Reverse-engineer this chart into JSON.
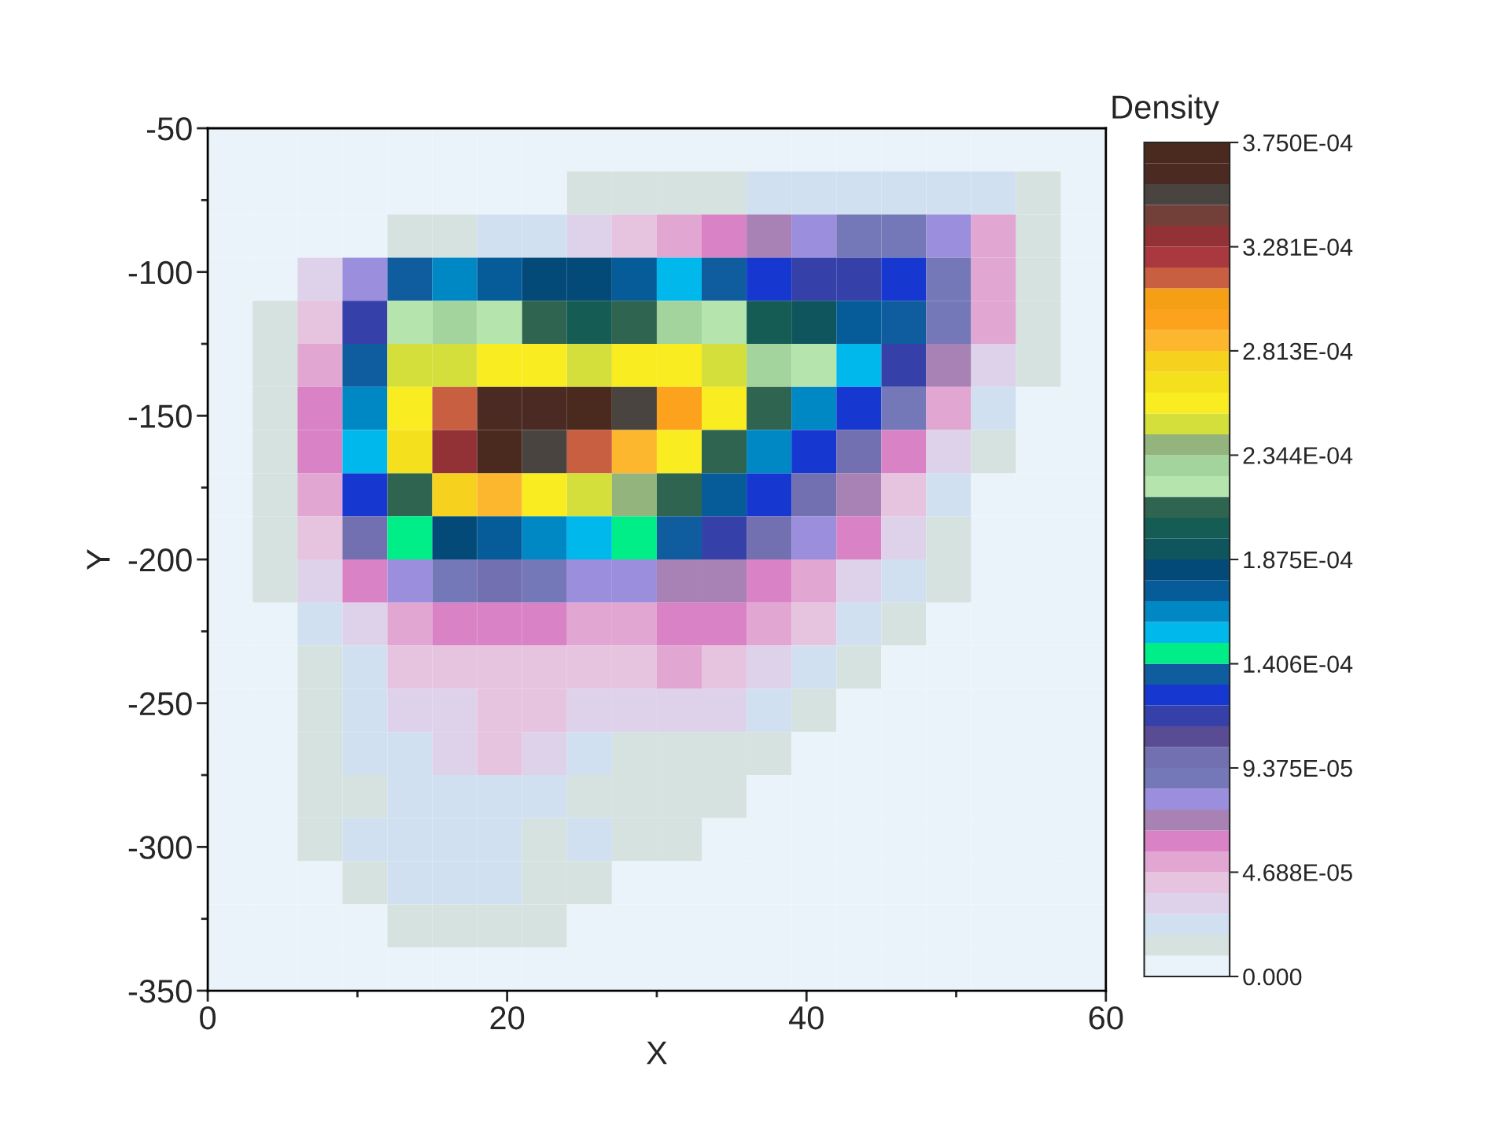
{
  "chart_data": {
    "type": "heatmap",
    "xlabel": "X",
    "ylabel": "Y",
    "clabel": "Density",
    "xlim": [
      0,
      60
    ],
    "ylim": [
      -350,
      -50
    ],
    "xticks": [
      0,
      {
        "value": 10,
        "label": null
      },
      20,
      {
        "value": 30,
        "label": null
      },
      40,
      {
        "value": 50,
        "label": null
      },
      60
    ],
    "yticks": [
      -50,
      {
        "value": -75,
        "label": null
      },
      -100,
      {
        "value": -125,
        "label": null
      },
      -150,
      {
        "value": -175,
        "label": null
      },
      -200,
      {
        "value": -225,
        "label": null
      },
      -250,
      {
        "value": -275,
        "label": null
      },
      -300,
      {
        "value": -325,
        "label": null
      },
      -350
    ],
    "clim": [
      0,
      0.000375
    ],
    "cticks": [
      {
        "value": 0,
        "label": "0.000"
      },
      {
        "value": 4.688e-05,
        "label": "4.688E-05"
      },
      {
        "value": 9.375e-05,
        "label": "9.375E-05"
      },
      {
        "value": 0.0001406,
        "label": "1.406E-04"
      },
      {
        "value": 0.0001875,
        "label": "1.875E-04"
      },
      {
        "value": 0.0002344,
        "label": "2.344E-04"
      },
      {
        "value": 0.0002813,
        "label": "2.813E-04"
      },
      {
        "value": 0.0003281,
        "label": "3.281E-04"
      },
      {
        "value": 0.000375,
        "label": "3.750E-04"
      }
    ],
    "colors": [
      "#eaf3fa",
      "#d5e2e0",
      "#d0e0f0",
      "#ded2ea",
      "#e6c3de",
      "#e2a6d2",
      "#d982c6",
      "#a882b4",
      "#9a8edd",
      "#7478b8",
      "#7270b0",
      "#5a4c94",
      "#3540a8",
      "#1738d0",
      "#0f5c9e",
      "#00ee88",
      "#00b8ec",
      "#0088c5",
      "#055c98",
      "#044a78",
      "#0e555e",
      "#155c55",
      "#2e6450",
      "#b5e4ad",
      "#a3d49e",
      "#93b47c",
      "#d5df3b",
      "#f9ec21",
      "#f5e01e",
      "#f6d21e",
      "#fcb72f",
      "#fca21c",
      "#f5a014",
      "#c95f41",
      "#a9393e",
      "#923236",
      "#734039",
      "#4a4440",
      "#4a2a22",
      "#4a2a1e"
    ],
    "cells": [
      [
        0,
        0,
        0,
        0,
        0,
        0,
        0,
        0,
        0,
        0,
        0,
        0,
        0,
        0,
        0,
        0,
        0,
        0,
        0,
        0
      ],
      [
        0,
        0,
        0,
        0,
        0,
        0,
        0,
        0,
        1.4e-05,
        1.4e-05,
        1.4e-05,
        1.4e-05,
        2.3e-05,
        2.3e-05,
        2.3e-05,
        2.3e-05,
        2.3e-05,
        2.3e-05,
        1.4e-05,
        0
      ],
      [
        0,
        0,
        0,
        0,
        1.4e-05,
        1.4e-05,
        2.3e-05,
        2.3e-05,
        3.3e-05,
        4.2e-05,
        5.2e-05,
        6.1e-05,
        7e-05,
        8e-05,
        8.9e-05,
        8.9e-05,
        8e-05,
        5.2e-05,
        1.4e-05,
        0
      ],
      [
        0,
        0,
        3.3e-05,
        8e-05,
        0.000136,
        0.000164,
        0.000173,
        0.000183,
        0.000183,
        0.000173,
        0.000155,
        0.000136,
        0.000127,
        0.000117,
        0.000117,
        0.000127,
        8.9e-05,
        5.2e-05,
        1.4e-05,
        0
      ],
      [
        0,
        1.4e-05,
        4.2e-05,
        0.000117,
        0.00022,
        0.00023,
        0.00022,
        0.000211,
        0.000202,
        0.000211,
        0.00023,
        0.00022,
        0.000202,
        0.000192,
        0.000173,
        0.000136,
        8.9e-05,
        5.2e-05,
        1.4e-05,
        0
      ],
      [
        0,
        1.4e-05,
        5.2e-05,
        0.000136,
        0.000248,
        0.000248,
        0.000258,
        0.000258,
        0.000248,
        0.000258,
        0.000258,
        0.000248,
        0.00023,
        0.00022,
        0.000155,
        0.000117,
        7e-05,
        3.3e-05,
        1.4e-05,
        0
      ],
      [
        0,
        1.4e-05,
        6.1e-05,
        0.000164,
        0.000258,
        0.000314,
        0.000361,
        0.000361,
        0.00037,
        0.000352,
        0.000295,
        0.000258,
        0.000211,
        0.000164,
        0.000127,
        8.9e-05,
        5.2e-05,
        2.3e-05,
        0,
        0
      ],
      [
        0,
        1.4e-05,
        6.1e-05,
        0.000155,
        0.000267,
        0.000333,
        0.00037,
        0.000352,
        0.000314,
        0.000286,
        0.000258,
        0.000211,
        0.000164,
        0.000127,
        9.8e-05,
        6.1e-05,
        3.3e-05,
        1.4e-05,
        0,
        0
      ],
      [
        0,
        1.4e-05,
        5.2e-05,
        0.000127,
        0.000211,
        0.000277,
        0.000286,
        0.000258,
        0.000248,
        0.000239,
        0.000211,
        0.000173,
        0.000127,
        9.8e-05,
        7e-05,
        4.2e-05,
        2.3e-05,
        0,
        0,
        0
      ],
      [
        0,
        1.4e-05,
        4.2e-05,
        9.8e-05,
        0.000145,
        0.000183,
        0.000173,
        0.000164,
        0.000155,
        0.000145,
        0.000136,
        0.000117,
        9.8e-05,
        8e-05,
        6.1e-05,
        3.3e-05,
        1.4e-05,
        0,
        0,
        0
      ],
      [
        0,
        1.4e-05,
        3.3e-05,
        6.1e-05,
        8e-05,
        8.9e-05,
        9.8e-05,
        8.9e-05,
        8e-05,
        8e-05,
        7e-05,
        7e-05,
        6.1e-05,
        5.2e-05,
        3.3e-05,
        2.3e-05,
        1.4e-05,
        0,
        0,
        0
      ],
      [
        0,
        0,
        2.3e-05,
        3.3e-05,
        5.2e-05,
        6.1e-05,
        6.1e-05,
        6.1e-05,
        5.2e-05,
        5.2e-05,
        6.1e-05,
        6.1e-05,
        5.2e-05,
        4.2e-05,
        2.3e-05,
        1.4e-05,
        0,
        0,
        0,
        0
      ],
      [
        0,
        0,
        1.4e-05,
        2.3e-05,
        4.2e-05,
        4.2e-05,
        4.2e-05,
        4.2e-05,
        4.2e-05,
        4.2e-05,
        5.2e-05,
        4.2e-05,
        3.3e-05,
        2.3e-05,
        1.4e-05,
        0,
        0,
        0,
        0,
        0
      ],
      [
        0,
        0,
        1.4e-05,
        2.3e-05,
        3.3e-05,
        3.3e-05,
        4.2e-05,
        4.2e-05,
        3.3e-05,
        3.3e-05,
        3.3e-05,
        3.3e-05,
        2.3e-05,
        1.4e-05,
        0,
        0,
        0,
        0,
        0,
        0
      ],
      [
        0,
        0,
        1.4e-05,
        2.3e-05,
        2.3e-05,
        3.3e-05,
        4.2e-05,
        3.3e-05,
        2.3e-05,
        1.4e-05,
        1.4e-05,
        1.4e-05,
        1.4e-05,
        0,
        0,
        0,
        0,
        0,
        0,
        0
      ],
      [
        0,
        0,
        1.4e-05,
        1.4e-05,
        2.3e-05,
        2.3e-05,
        2.3e-05,
        2.3e-05,
        1.4e-05,
        1.4e-05,
        1.4e-05,
        1.4e-05,
        0,
        0,
        0,
        0,
        0,
        0,
        0,
        0
      ],
      [
        0,
        0,
        1.4e-05,
        2.3e-05,
        2.3e-05,
        2.3e-05,
        2.3e-05,
        1.4e-05,
        2.3e-05,
        1.4e-05,
        1.4e-05,
        0,
        0,
        0,
        0,
        0,
        0,
        0,
        0,
        0
      ],
      [
        0,
        0,
        0,
        1.4e-05,
        2.3e-05,
        2.3e-05,
        2.3e-05,
        1.4e-05,
        1.4e-05,
        0,
        0,
        0,
        0,
        0,
        0,
        0,
        0,
        0,
        0,
        0
      ],
      [
        0,
        0,
        0,
        0,
        1.4e-05,
        1.4e-05,
        1.4e-05,
        1.4e-05,
        0,
        0,
        0,
        0,
        0,
        0,
        0,
        0,
        0,
        0,
        0,
        0
      ],
      [
        0,
        0,
        0,
        0,
        0,
        0,
        0,
        0,
        0,
        0,
        0,
        0,
        0,
        0,
        0,
        0,
        0,
        0,
        0,
        0
      ]
    ]
  }
}
